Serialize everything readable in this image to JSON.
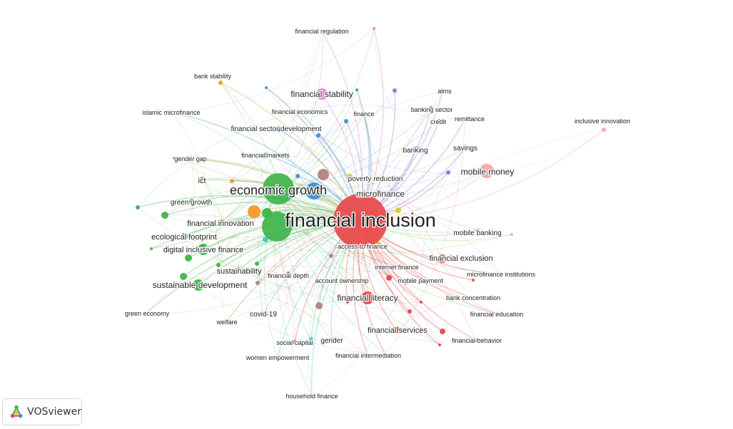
{
  "app": {
    "name": "VOSviewer"
  },
  "colors": {
    "red": "#e8484a",
    "green": "#3fb44a",
    "blue": "#3f8fd6",
    "yellow": "#cfcd31",
    "purple": "#a067d8",
    "cyan": "#3ec8dc",
    "orange": "#f39a2a",
    "brown": "#b08479",
    "pink": "#f07fce",
    "lightgreen": "#9be07a",
    "salmon": "#f5a5a5"
  },
  "keywords": [
    {
      "id": "financial-inclusion",
      "label": "financial inclusion",
      "cluster": "red"
    },
    {
      "id": "economic-growth",
      "label": "economic growth",
      "cluster": "green"
    },
    {
      "id": "microfinance",
      "label": "microfinance",
      "cluster": "yellow"
    },
    {
      "id": "poverty-reduction",
      "label": "poverty reduction",
      "cluster": "yellow"
    },
    {
      "id": "mobile-money",
      "label": "mobile money",
      "cluster": "salmon"
    },
    {
      "id": "financial-stability",
      "label": "financial stability",
      "cluster": "pink"
    },
    {
      "id": "financial-regulation",
      "label": "financial regulation",
      "cluster": "pink"
    },
    {
      "id": "financial-literacy",
      "label": "financial literacy",
      "cluster": "red"
    },
    {
      "id": "financial-exclusion",
      "label": "financial exclusion",
      "cluster": "red"
    },
    {
      "id": "financial-services",
      "label": "financial services",
      "cluster": "red"
    },
    {
      "id": "digital-inclusive-finance",
      "label": "digital inclusive finance",
      "cluster": "green"
    },
    {
      "id": "sustainable-development",
      "label": "sustainable development",
      "cluster": "green"
    },
    {
      "id": "ict",
      "label": "ict",
      "cluster": "green"
    },
    {
      "id": "green-growth",
      "label": "green growth",
      "cluster": "green"
    },
    {
      "id": "financial-innovation",
      "label": "financial innovation",
      "cluster": "green"
    },
    {
      "id": "ecological-footprint",
      "label": "ecological footprint",
      "cluster": "green"
    },
    {
      "id": "sustainability",
      "label": "sustainability",
      "cluster": "green"
    },
    {
      "id": "green-economy",
      "label": "green economy",
      "cluster": "green"
    },
    {
      "id": "bank-stability",
      "label": "bank stability",
      "cluster": "orange"
    },
    {
      "id": "gender-gap",
      "label": "gender gap",
      "cluster": "orange"
    },
    {
      "id": "islamic-microfinance",
      "label": "islamic microfinance",
      "cluster": "blue"
    },
    {
      "id": "financial-economics",
      "label": "financial economics",
      "cluster": "blue"
    },
    {
      "id": "finance",
      "label": "finance",
      "cluster": "blue"
    },
    {
      "id": "financial-sector-development",
      "label": "financial sector development",
      "cluster": "blue"
    },
    {
      "id": "financial-markets",
      "label": "financial markets",
      "cluster": "blue"
    },
    {
      "id": "banking",
      "label": "banking",
      "cluster": "blue"
    },
    {
      "id": "banking-sector",
      "label": "banking sector",
      "cluster": "purple"
    },
    {
      "id": "atms",
      "label": "atms",
      "cluster": "purple"
    },
    {
      "id": "credit",
      "label": "credit",
      "cluster": "purple"
    },
    {
      "id": "remittance",
      "label": "remittance",
      "cluster": "purple"
    },
    {
      "id": "savings",
      "label": "savings",
      "cluster": "purple"
    },
    {
      "id": "inclusive-innovation",
      "label": "inclusive innovation",
      "cluster": "salmon"
    },
    {
      "id": "mobile-banking",
      "label": "mobile banking",
      "cluster": "lightgreen"
    },
    {
      "id": "access-to-finance",
      "label": "access to finance",
      "cluster": "yellow"
    },
    {
      "id": "internet-finance",
      "label": "internet finance",
      "cluster": "red"
    },
    {
      "id": "mobile-payment",
      "label": "mobile payment",
      "cluster": "red"
    },
    {
      "id": "account-ownership",
      "label": "account ownership",
      "cluster": "yellow"
    },
    {
      "id": "financial-depth",
      "label": "financial depth",
      "cluster": "brown"
    },
    {
      "id": "microfinance-institutions",
      "label": "microfinance institutions",
      "cluster": "red"
    },
    {
      "id": "bank-concentration",
      "label": "bank concentration",
      "cluster": "red"
    },
    {
      "id": "financial-education",
      "label": "financial education",
      "cluster": "red"
    },
    {
      "id": "financial-behavior",
      "label": "financial behavior",
      "cluster": "red"
    },
    {
      "id": "covid-19",
      "label": "covid-19",
      "cluster": "cyan"
    },
    {
      "id": "welfare",
      "label": "welfare",
      "cluster": "brown"
    },
    {
      "id": "gender",
      "label": "gender",
      "cluster": "cyan"
    },
    {
      "id": "social-capital",
      "label": "social capital",
      "cluster": "red"
    },
    {
      "id": "women-empowerment",
      "label": "women empowerment",
      "cluster": "cyan"
    },
    {
      "id": "financial-intermediation",
      "label": "financial intermediation",
      "cluster": "red"
    },
    {
      "id": "household-finance",
      "label": "household finance",
      "cluster": "cyan"
    }
  ]
}
